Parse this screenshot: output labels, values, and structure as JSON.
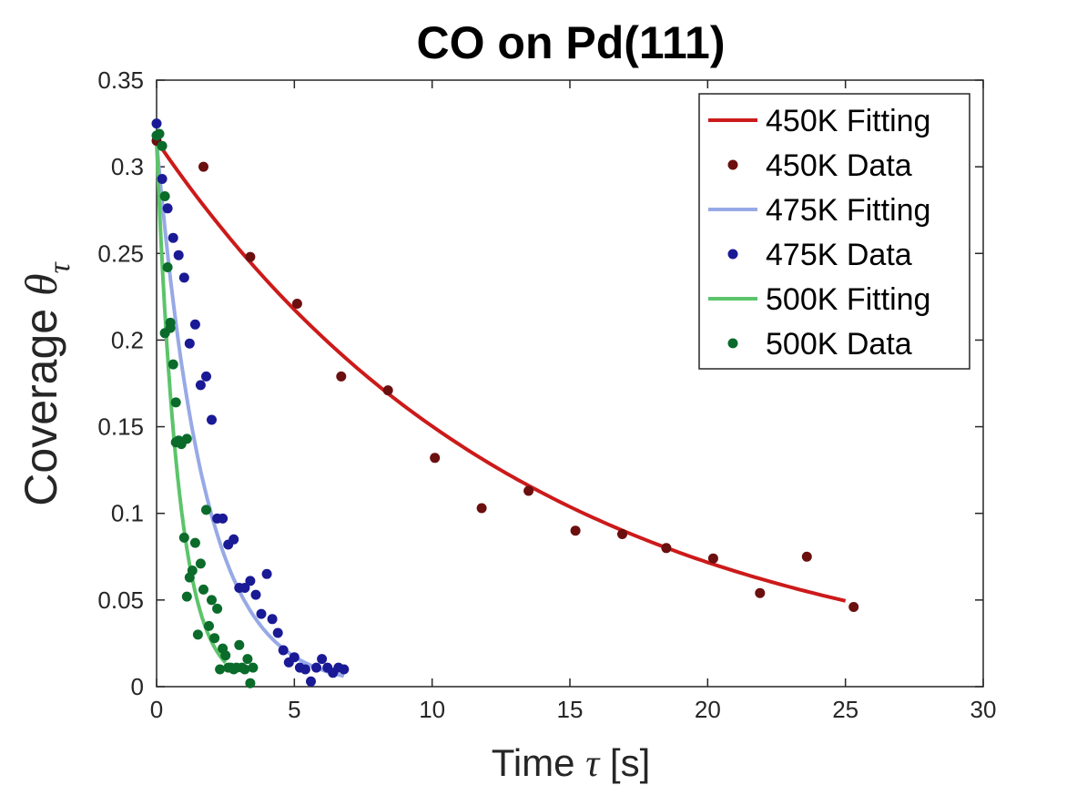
{
  "chart_data": {
    "type": "scatter",
    "title": "CO on Pd(111)",
    "xlabel_prefix": "Time ",
    "xlabel_symbol": "τ",
    "xlabel_suffix": " [s]",
    "ylabel_prefix": "Coverage ",
    "ylabel_symbol": "θ",
    "ylabel_subscript": "τ",
    "xlim": [
      0,
      30
    ],
    "ylim": [
      0,
      0.35
    ],
    "xticks": [
      0,
      5,
      10,
      15,
      20,
      25,
      30
    ],
    "xtick_labels": [
      "0",
      "5",
      "10",
      "15",
      "20",
      "25",
      "30"
    ],
    "yticks": [
      0,
      0.05,
      0.1,
      0.15,
      0.2,
      0.25,
      0.3,
      0.35
    ],
    "ytick_labels": [
      "0",
      "0.05",
      "0.1",
      "0.15",
      "0.2",
      "0.25",
      "0.3",
      "0.35"
    ],
    "grid": false,
    "legend_position": "top-right",
    "series": [
      {
        "name": "450K Fitting",
        "kind": "line",
        "color": "#cc1a1a",
        "model": {
          "a": 0.315,
          "k": 0.074
        },
        "x_range": [
          0,
          25
        ]
      },
      {
        "name": "450K Data",
        "kind": "scatter",
        "color": "#6b0f0f",
        "points": [
          [
            0,
            0.315
          ],
          [
            1.7,
            0.3
          ],
          [
            3.4,
            0.248
          ],
          [
            5.1,
            0.221
          ],
          [
            6.7,
            0.179
          ],
          [
            8.4,
            0.171
          ],
          [
            10.1,
            0.132
          ],
          [
            11.8,
            0.103
          ],
          [
            13.5,
            0.113
          ],
          [
            15.2,
            0.09
          ],
          [
            16.9,
            0.088
          ],
          [
            18.5,
            0.08
          ],
          [
            20.2,
            0.074
          ],
          [
            21.9,
            0.054
          ],
          [
            23.6,
            0.075
          ],
          [
            25.3,
            0.046
          ]
        ]
      },
      {
        "name": "475K Fitting",
        "kind": "line",
        "color": "#97a9e6",
        "model": {
          "a": 0.315,
          "k": 0.58
        },
        "x_range": [
          0,
          6.8
        ]
      },
      {
        "name": "475K Data",
        "kind": "scatter",
        "color": "#1a1a96",
        "points": [
          [
            0,
            0.325
          ],
          [
            0.2,
            0.293
          ],
          [
            0.4,
            0.276
          ],
          [
            0.6,
            0.259
          ],
          [
            0.8,
            0.249
          ],
          [
            1,
            0.236
          ],
          [
            1.2,
            0.198
          ],
          [
            1.4,
            0.209
          ],
          [
            1.6,
            0.174
          ],
          [
            1.8,
            0.179
          ],
          [
            2,
            0.154
          ],
          [
            2.2,
            0.097
          ],
          [
            2.4,
            0.097
          ],
          [
            2.6,
            0.082
          ],
          [
            2.8,
            0.085
          ],
          [
            3,
            0.057
          ],
          [
            3.2,
            0.057
          ],
          [
            3.4,
            0.061
          ],
          [
            3.6,
            0.053
          ],
          [
            3.8,
            0.042
          ],
          [
            4,
            0.065
          ],
          [
            4.2,
            0.039
          ],
          [
            4.4,
            0.031
          ],
          [
            4.6,
            0.021
          ],
          [
            4.8,
            0.014
          ],
          [
            5,
            0.017
          ],
          [
            5.2,
            0.011
          ],
          [
            5.4,
            0.01
          ],
          [
            5.6,
            0.003
          ],
          [
            5.8,
            0.011
          ],
          [
            6,
            0.016
          ],
          [
            6.2,
            0.011
          ],
          [
            6.4,
            0.008
          ],
          [
            6.6,
            0.011
          ],
          [
            6.8,
            0.01
          ]
        ]
      },
      {
        "name": "500K Fitting",
        "kind": "line",
        "color": "#5cc46a",
        "model": {
          "a": 0.315,
          "k": 1.25
        },
        "x_range": [
          0,
          2.5
        ]
      },
      {
        "name": "500K Data",
        "kind": "scatter",
        "color": "#0a6b2a",
        "points": [
          [
            0,
            0.318
          ],
          [
            0.1,
            0.319
          ],
          [
            0.2,
            0.312
          ],
          [
            0.3,
            0.283
          ],
          [
            0.3,
            0.204
          ],
          [
            0.4,
            0.242
          ],
          [
            0.5,
            0.21
          ],
          [
            0.5,
            0.207
          ],
          [
            0.6,
            0.186
          ],
          [
            0.7,
            0.164
          ],
          [
            0.7,
            0.141
          ],
          [
            0.8,
            0.142
          ],
          [
            0.9,
            0.14
          ],
          [
            1,
            0.086
          ],
          [
            1.1,
            0.143
          ],
          [
            1.1,
            0.052
          ],
          [
            1.2,
            0.063
          ],
          [
            1.3,
            0.067
          ],
          [
            1.4,
            0.083
          ],
          [
            1.5,
            0.03
          ],
          [
            1.6,
            0.071
          ],
          [
            1.7,
            0.056
          ],
          [
            1.8,
            0.102
          ],
          [
            1.9,
            0.035
          ],
          [
            2,
            0.05
          ],
          [
            2.1,
            0.028
          ],
          [
            2.2,
            0.045
          ],
          [
            2.3,
            0.01
          ],
          [
            2.4,
            0.022
          ],
          [
            2.5,
            0.018
          ],
          [
            2.6,
            0.011
          ],
          [
            2.7,
            0.011
          ],
          [
            2.8,
            0.01
          ],
          [
            2.9,
            0.011
          ],
          [
            3,
            0.024
          ],
          [
            3.1,
            0.011
          ],
          [
            3.2,
            0.01
          ],
          [
            3.3,
            0.016
          ],
          [
            3.4,
            0.002
          ],
          [
            3.5,
            0.011
          ]
        ]
      }
    ]
  }
}
